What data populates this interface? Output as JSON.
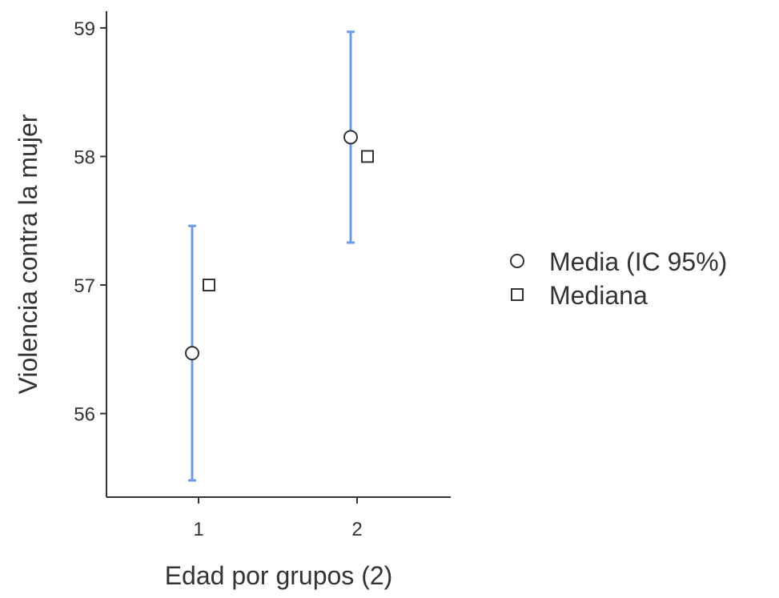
{
  "chart_data": {
    "type": "scatter",
    "xlabel": "Edad por grupos (2)",
    "ylabel": "Violencia contra la mujer",
    "categories": [
      "1",
      "2"
    ],
    "ylim": [
      55.35,
      59.13
    ],
    "yticks": [
      "56",
      "57",
      "58",
      "59"
    ],
    "grid": false,
    "legend_position": "right",
    "series": [
      {
        "name": "Media (IC 95%)",
        "marker": "circle",
        "values": [
          56.47,
          58.15
        ],
        "ci_lower": [
          55.48,
          57.33
        ],
        "ci_upper": [
          57.46,
          58.97
        ]
      },
      {
        "name": "Mediana",
        "marker": "square",
        "values": [
          57.0,
          58.0
        ]
      }
    ],
    "colors": {
      "errorbar": "#6f9ae6",
      "axis": "#333333",
      "marker_stroke": "#333333",
      "marker_fill": "#ffffff"
    }
  }
}
